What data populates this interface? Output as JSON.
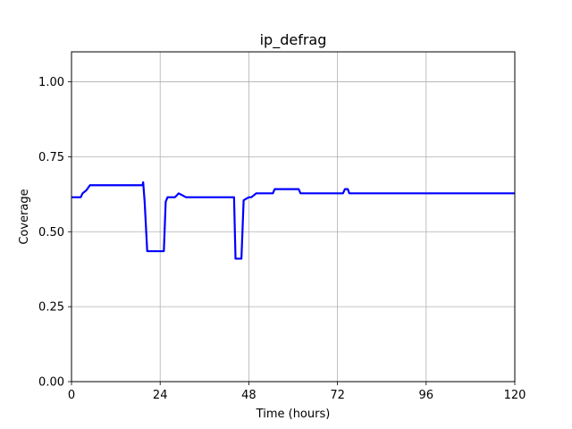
{
  "chart_data": {
    "type": "line",
    "title": "ip_defrag",
    "xlabel": "Time (hours)",
    "ylabel": "Coverage",
    "xlim": [
      0,
      120
    ],
    "ylim": [
      0,
      1.1
    ],
    "xticks": [
      0,
      24,
      48,
      72,
      96,
      120
    ],
    "xtick_labels": [
      "0",
      "24",
      "48",
      "72",
      "96",
      "120"
    ],
    "yticks": [
      0,
      0.25,
      0.5,
      0.75,
      1.0
    ],
    "ytick_labels": [
      "0.00",
      "0.25",
      "0.50",
      "0.75",
      "1.00"
    ],
    "grid": true,
    "series": [
      {
        "name": "coverage",
        "color": "#0000ff",
        "x": [
          0,
          2.5,
          3,
          4,
          5,
          19.2,
          19.4,
          19.8,
          20.5,
          25,
          25.5,
          26,
          28,
          29,
          31,
          44,
          44.4,
          46,
          46.6,
          48,
          48.7,
          50,
          54.5,
          55,
          61.5,
          62,
          73.5,
          74,
          74.8,
          75.2,
          120
        ],
        "values": [
          0.615,
          0.615,
          0.628,
          0.638,
          0.655,
          0.655,
          0.665,
          0.6,
          0.435,
          0.435,
          0.6,
          0.615,
          0.615,
          0.628,
          0.615,
          0.615,
          0.41,
          0.41,
          0.605,
          0.615,
          0.615,
          0.628,
          0.628,
          0.642,
          0.642,
          0.628,
          0.628,
          0.642,
          0.642,
          0.628,
          0.628
        ]
      }
    ]
  }
}
